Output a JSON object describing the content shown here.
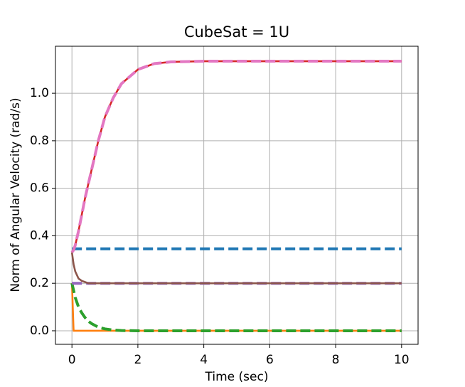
{
  "chart_data": {
    "type": "line",
    "title": "CubeSat = 1U",
    "x_label": "Time (sec)",
    "y_label": "Norm of Angular Velocity (rad/s)",
    "x": [
      0,
      0.05,
      0.1,
      0.2,
      0.3,
      0.4,
      0.5,
      0.6,
      0.8,
      1,
      1.25,
      1.5,
      2,
      2.5,
      3,
      4,
      5,
      6,
      7,
      8,
      9,
      10
    ],
    "series": [
      {
        "name": "blue",
        "color": "#1f77b4",
        "linestyle": "dashed",
        "values": [
          0.345,
          0.345,
          0.345,
          0.345,
          0.345,
          0.345,
          0.345,
          0.345,
          0.345,
          0.345,
          0.345,
          0.345,
          0.345,
          0.345,
          0.345,
          0.345,
          0.345,
          0.345,
          0.345,
          0.345,
          0.345,
          0.345
        ]
      },
      {
        "name": "orange",
        "color": "#ff7f0e",
        "linestyle": "solid",
        "values": [
          0.2,
          0,
          0,
          0,
          0,
          0,
          0,
          0,
          0,
          0,
          0,
          0,
          0,
          0,
          0,
          0,
          0,
          0,
          0,
          0,
          0,
          0
        ]
      },
      {
        "name": "green",
        "color": "#2ca02c",
        "linestyle": "dashed",
        "values": [
          0.2,
          0.17,
          0.14,
          0.1,
          0.075,
          0.055,
          0.04,
          0.03,
          0.015,
          0.008,
          0.003,
          0.001,
          0,
          0,
          0,
          0,
          0,
          0,
          0,
          0,
          0,
          0
        ]
      },
      {
        "name": "red",
        "color": "#d62728",
        "linestyle": "solid",
        "values": [
          0.33,
          0.34,
          0.36,
          0.42,
          0.49,
          0.56,
          0.62,
          0.68,
          0.8,
          0.9,
          0.98,
          1.04,
          1.1,
          1.125,
          1.132,
          1.135,
          1.135,
          1.135,
          1.135,
          1.135,
          1.135,
          1.135
        ]
      },
      {
        "name": "purple",
        "color": "#9467bd",
        "linestyle": "dashed",
        "values": [
          0.2,
          0.2,
          0.2,
          0.2,
          0.2,
          0.2,
          0.2,
          0.2,
          0.2,
          0.2,
          0.2,
          0.2,
          0.2,
          0.2,
          0.2,
          0.2,
          0.2,
          0.2,
          0.2,
          0.2,
          0.2,
          0.2
        ]
      },
      {
        "name": "brown",
        "color": "#8c564b",
        "linestyle": "solid",
        "values": [
          0.33,
          0.28,
          0.25,
          0.22,
          0.21,
          0.205,
          0.2,
          0.2,
          0.2,
          0.2,
          0.2,
          0.2,
          0.2,
          0.2,
          0.2,
          0.2,
          0.2,
          0.2,
          0.2,
          0.2,
          0.2,
          0.2
        ]
      },
      {
        "name": "pink",
        "color": "#e377c2",
        "linestyle": "dashed",
        "values": [
          0.33,
          0.34,
          0.36,
          0.42,
          0.49,
          0.56,
          0.62,
          0.68,
          0.8,
          0.9,
          0.98,
          1.04,
          1.1,
          1.125,
          1.132,
          1.135,
          1.135,
          1.135,
          1.135,
          1.135,
          1.135,
          1.135
        ]
      }
    ],
    "xlim": [
      -0.5,
      10.5
    ],
    "ylim": [
      -0.057,
      1.198
    ],
    "xticks": [
      0,
      2,
      4,
      6,
      8,
      10
    ],
    "yticks": [
      {
        "value": 0,
        "label": "0.0"
      },
      0.2,
      0.4,
      0.6,
      0.8,
      {
        "value": 1,
        "label": "1.0"
      }
    ],
    "grid": true
  }
}
